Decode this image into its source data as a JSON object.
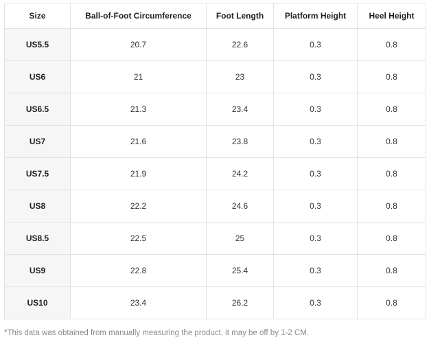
{
  "table": {
    "headers": [
      "Size",
      "Ball-of-Foot Circumference",
      "Foot Length",
      "Platform Height",
      "Heel Height"
    ],
    "rows": [
      [
        "US5.5",
        "20.7",
        "22.6",
        "0.3",
        "0.8"
      ],
      [
        "US6",
        "21",
        "23",
        "0.3",
        "0.8"
      ],
      [
        "US6.5",
        "21.3",
        "23.4",
        "0.3",
        "0.8"
      ],
      [
        "US7",
        "21.6",
        "23.8",
        "0.3",
        "0.8"
      ],
      [
        "US7.5",
        "21.9",
        "24.2",
        "0.3",
        "0.8"
      ],
      [
        "US8",
        "22.2",
        "24.6",
        "0.3",
        "0.8"
      ],
      [
        "US8.5",
        "22.5",
        "25",
        "0.3",
        "0.8"
      ],
      [
        "US9",
        "22.8",
        "25.4",
        "0.3",
        "0.8"
      ],
      [
        "US10",
        "23.4",
        "26.2",
        "0.3",
        "0.8"
      ]
    ]
  },
  "footnote": "*This data was obtained from manually measuring the product, it may be off by 1-2 CM."
}
